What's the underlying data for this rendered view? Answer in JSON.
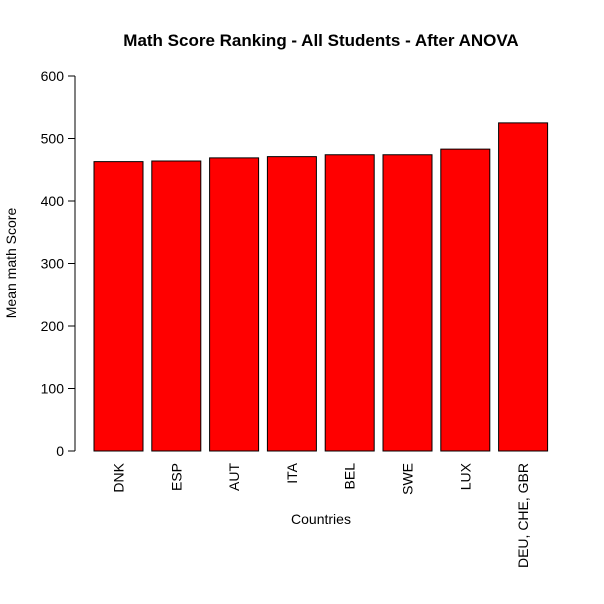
{
  "chart_data": {
    "type": "bar",
    "title": "Math Score Ranking - All Students - After ANOVA",
    "xlabel": "Countries",
    "ylabel": "Mean math Score",
    "categories": [
      "DNK",
      "ESP",
      "AUT",
      "ITA",
      "BEL",
      "SWE",
      "LUX",
      "DEU, CHE, GBR"
    ],
    "values": [
      463,
      464,
      469,
      471,
      474,
      474,
      483,
      525
    ],
    "ylim": [
      0,
      600
    ],
    "yticks": [
      0,
      100,
      200,
      300,
      400,
      500,
      600
    ],
    "grid": false,
    "legend": "none",
    "bar_color": "#FF0000",
    "bar_border_color": "#000000"
  }
}
